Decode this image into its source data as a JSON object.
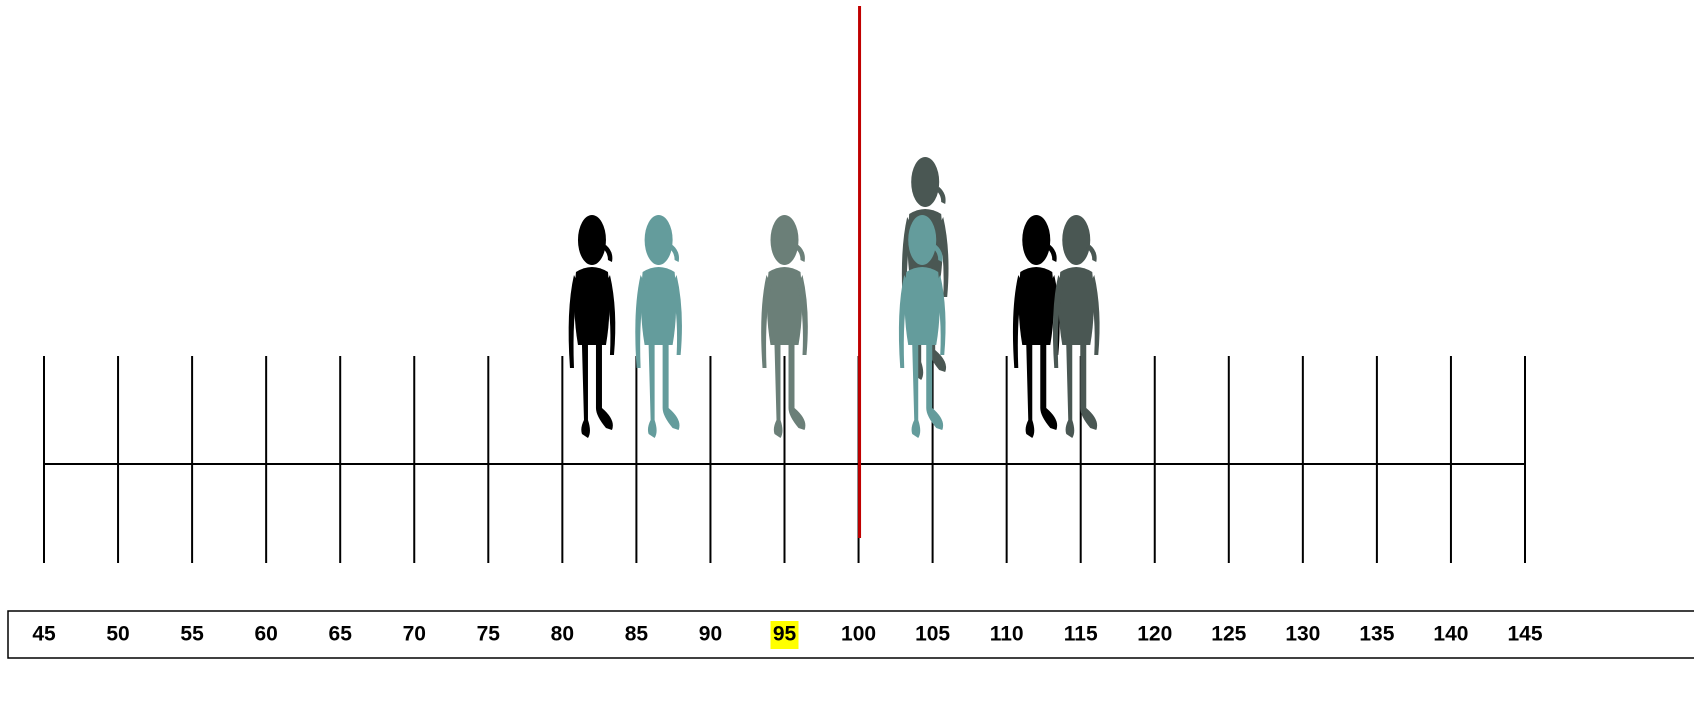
{
  "scale": {
    "min": 45,
    "max": 145,
    "ticks": [
      45,
      50,
      55,
      60,
      65,
      70,
      75,
      80,
      85,
      90,
      95,
      100,
      105,
      110,
      115,
      120,
      125,
      130,
      135,
      140,
      145
    ],
    "highlight": 95,
    "marker": 100,
    "marker_color": "#c00000",
    "highlight_color": "#ffff00"
  },
  "figures": [
    {
      "position": 82,
      "color": "#000000"
    },
    {
      "position": 86.5,
      "color": "#649c9c"
    },
    {
      "position": 95,
      "color": "#6b7f78"
    },
    {
      "position": 104.5,
      "color": "#4a5753"
    },
    {
      "position": 104.3,
      "color": "#649c9c"
    },
    {
      "position": 112,
      "color": "#000000"
    },
    {
      "position": 114.7,
      "color": "#4a5753"
    }
  ]
}
